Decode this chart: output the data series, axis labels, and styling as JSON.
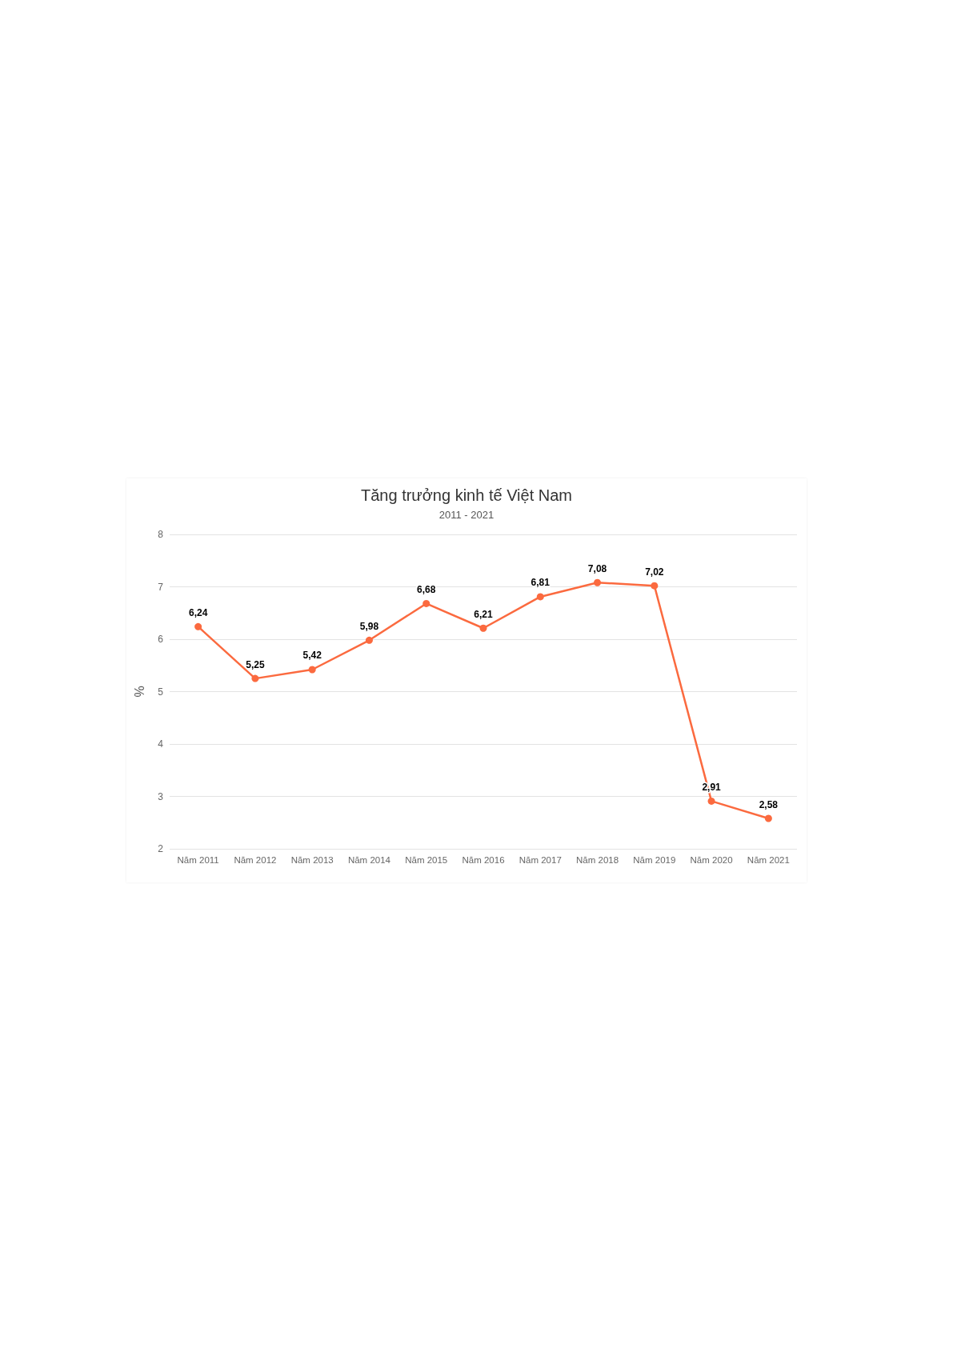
{
  "chart_data": {
    "type": "line",
    "title": "Tăng trưởng kinh tế Việt Nam",
    "subtitle": "2011 - 2021",
    "ylabel": "%",
    "categories": [
      "Năm 2011",
      "Năm 2012",
      "Năm 2013",
      "Năm 2014",
      "Năm 2015",
      "Năm 2016",
      "Năm 2017",
      "Năm 2018",
      "Năm 2019",
      "Năm 2020",
      "Năm 2021"
    ],
    "series": [
      {
        "color": "#fb6a3f",
        "values": [
          6.24,
          5.25,
          5.42,
          5.98,
          6.68,
          6.21,
          6.81,
          7.08,
          7.02,
          2.91,
          2.58
        ],
        "value_labels": [
          "6,24",
          "5,25",
          "5,42",
          "5,98",
          "6,68",
          "6,21",
          "6,81",
          "7,08",
          "7,02",
          "2,91",
          "2,58"
        ]
      }
    ],
    "ylim": [
      2,
      8
    ],
    "yticks": [
      2,
      3,
      4,
      5,
      6,
      7,
      8
    ],
    "grid": "y",
    "marker": "circle",
    "line_style": "solid"
  }
}
